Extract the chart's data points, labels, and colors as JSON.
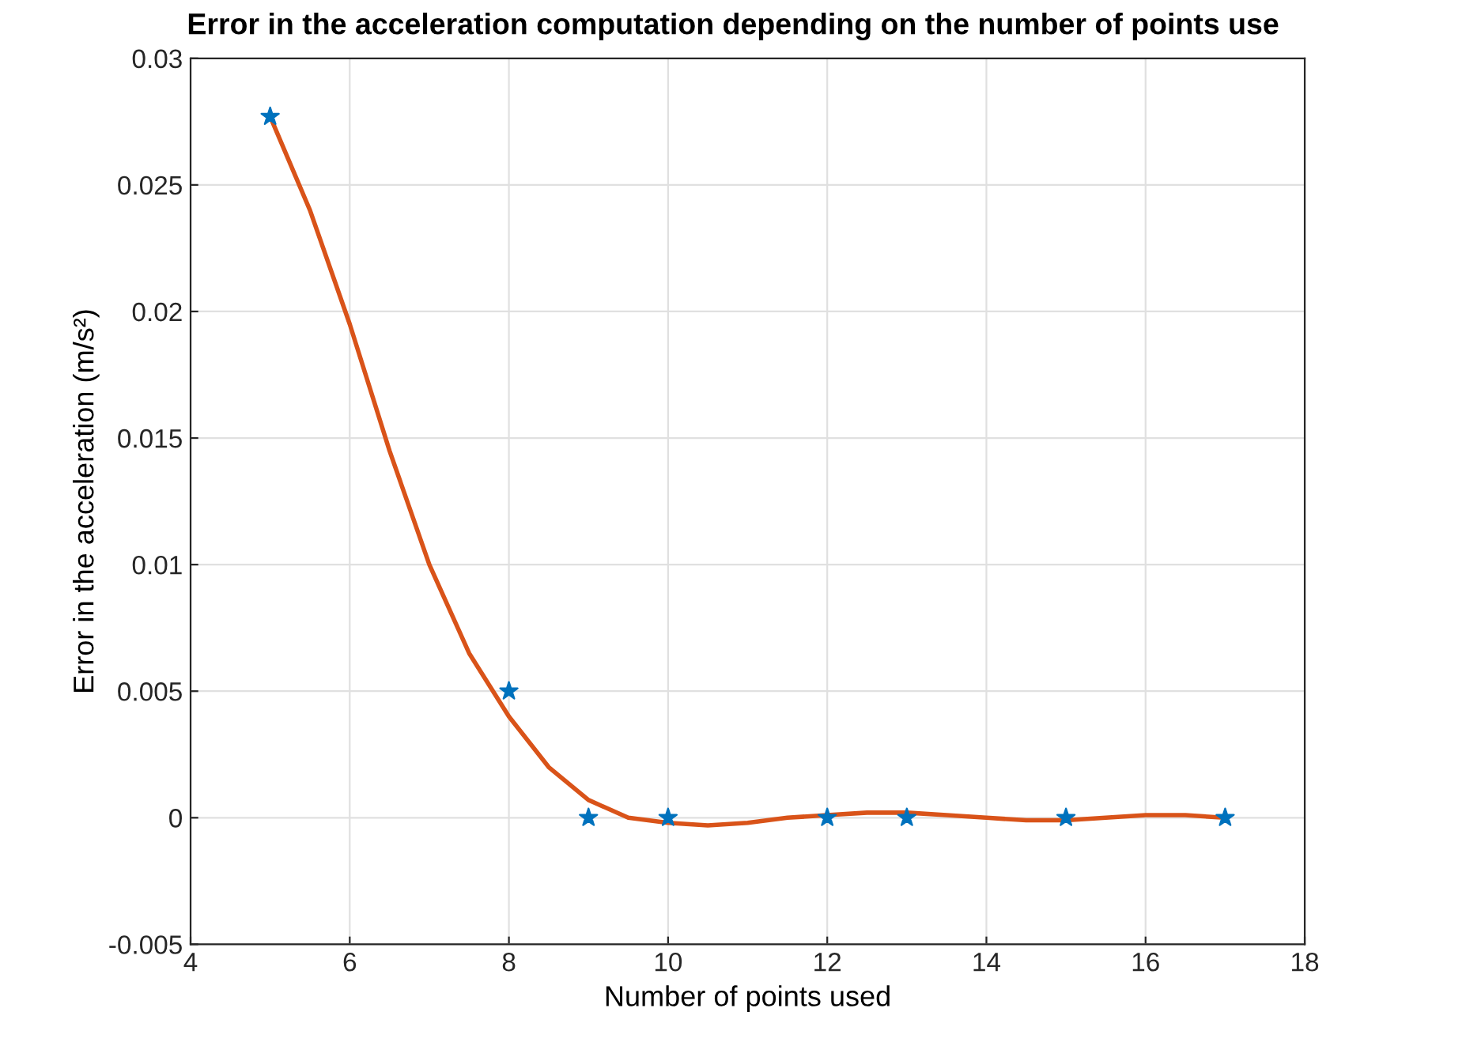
{
  "chart_data": {
    "type": "scatter",
    "title": "Error in the acceleration computation depending on the number of points use",
    "xlabel": "Number of points used",
    "ylabel": "Error in the acceleration (m/s²)",
    "series": [
      {
        "type": "line",
        "color": "#d95319",
        "marker": "none",
        "x": [
          5,
          5.5,
          6,
          6.5,
          7,
          7.5,
          8,
          8.5,
          9,
          9.5,
          10,
          10.5,
          11,
          11.5,
          12,
          12.5,
          13,
          13.5,
          14,
          14.5,
          15,
          15.5,
          16,
          16.5,
          17
        ],
        "values": [
          0.0277,
          0.024,
          0.0195,
          0.0145,
          0.01,
          0.0065,
          0.004,
          0.002,
          0.0007,
          0.0,
          -0.0002,
          -0.0003,
          -0.0002,
          0.0,
          0.0001,
          0.0002,
          0.0002,
          0.0001,
          0.0,
          -0.0001,
          -0.0001,
          0.0,
          0.0001,
          0.0001,
          0.0
        ]
      },
      {
        "color": "#0072bd",
        "marker": "star",
        "x": [
          5,
          8,
          9,
          10,
          12,
          13,
          15,
          17
        ],
        "values": [
          0.0277,
          0.005,
          0,
          0,
          0,
          0,
          0,
          0
        ]
      }
    ],
    "xlim": [
      4,
      18
    ],
    "xticks": [
      4,
      6,
      8,
      10,
      12,
      14,
      16,
      18
    ],
    "ylim": [
      -0.005,
      0.03
    ],
    "yticks": [
      -0.005,
      0,
      0.005,
      0.01,
      0.015,
      0.02,
      0.025,
      0.03
    ],
    "grid": true
  }
}
